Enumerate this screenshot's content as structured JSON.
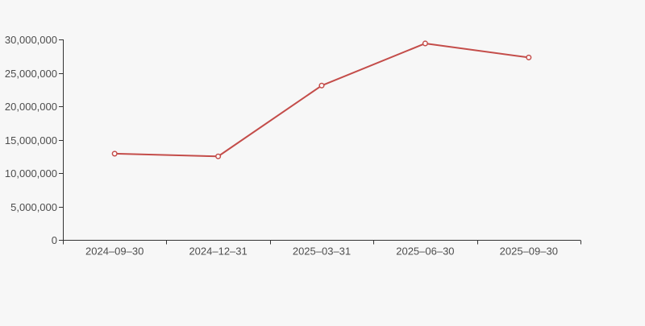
{
  "page": {
    "background": "#f7f7f7"
  },
  "chart_data": {
    "type": "line",
    "title": "",
    "xlabel": "",
    "ylabel": "",
    "categories": [
      "2024–09–30",
      "2024–12–31",
      "2025–03–31",
      "2025–06–30",
      "2025–09–30"
    ],
    "series": [
      {
        "name": "series-1",
        "values": [
          12900000,
          12500000,
          23100000,
          29400000,
          27300000
        ],
        "color": "#c44d4a",
        "marker": "open-circle",
        "marker_fill": "#ffffff"
      }
    ],
    "ylim": [
      0,
      30000000
    ],
    "yticks": [
      {
        "value": 0,
        "label": "0"
      },
      {
        "value": 5000000,
        "label": "5,000,000"
      },
      {
        "value": 10000000,
        "label": "10,000,000"
      },
      {
        "value": 15000000,
        "label": "15,000,000"
      },
      {
        "value": 20000000,
        "label": "20,000,000"
      },
      {
        "value": 25000000,
        "label": "25,000,000"
      },
      {
        "value": 30000000,
        "label": "30,000,000"
      }
    ],
    "grid": false,
    "legend": "none",
    "axis_color": "#333333",
    "tick_label_color": "#4d4d4d",
    "tick_label_font_px": 13
  }
}
